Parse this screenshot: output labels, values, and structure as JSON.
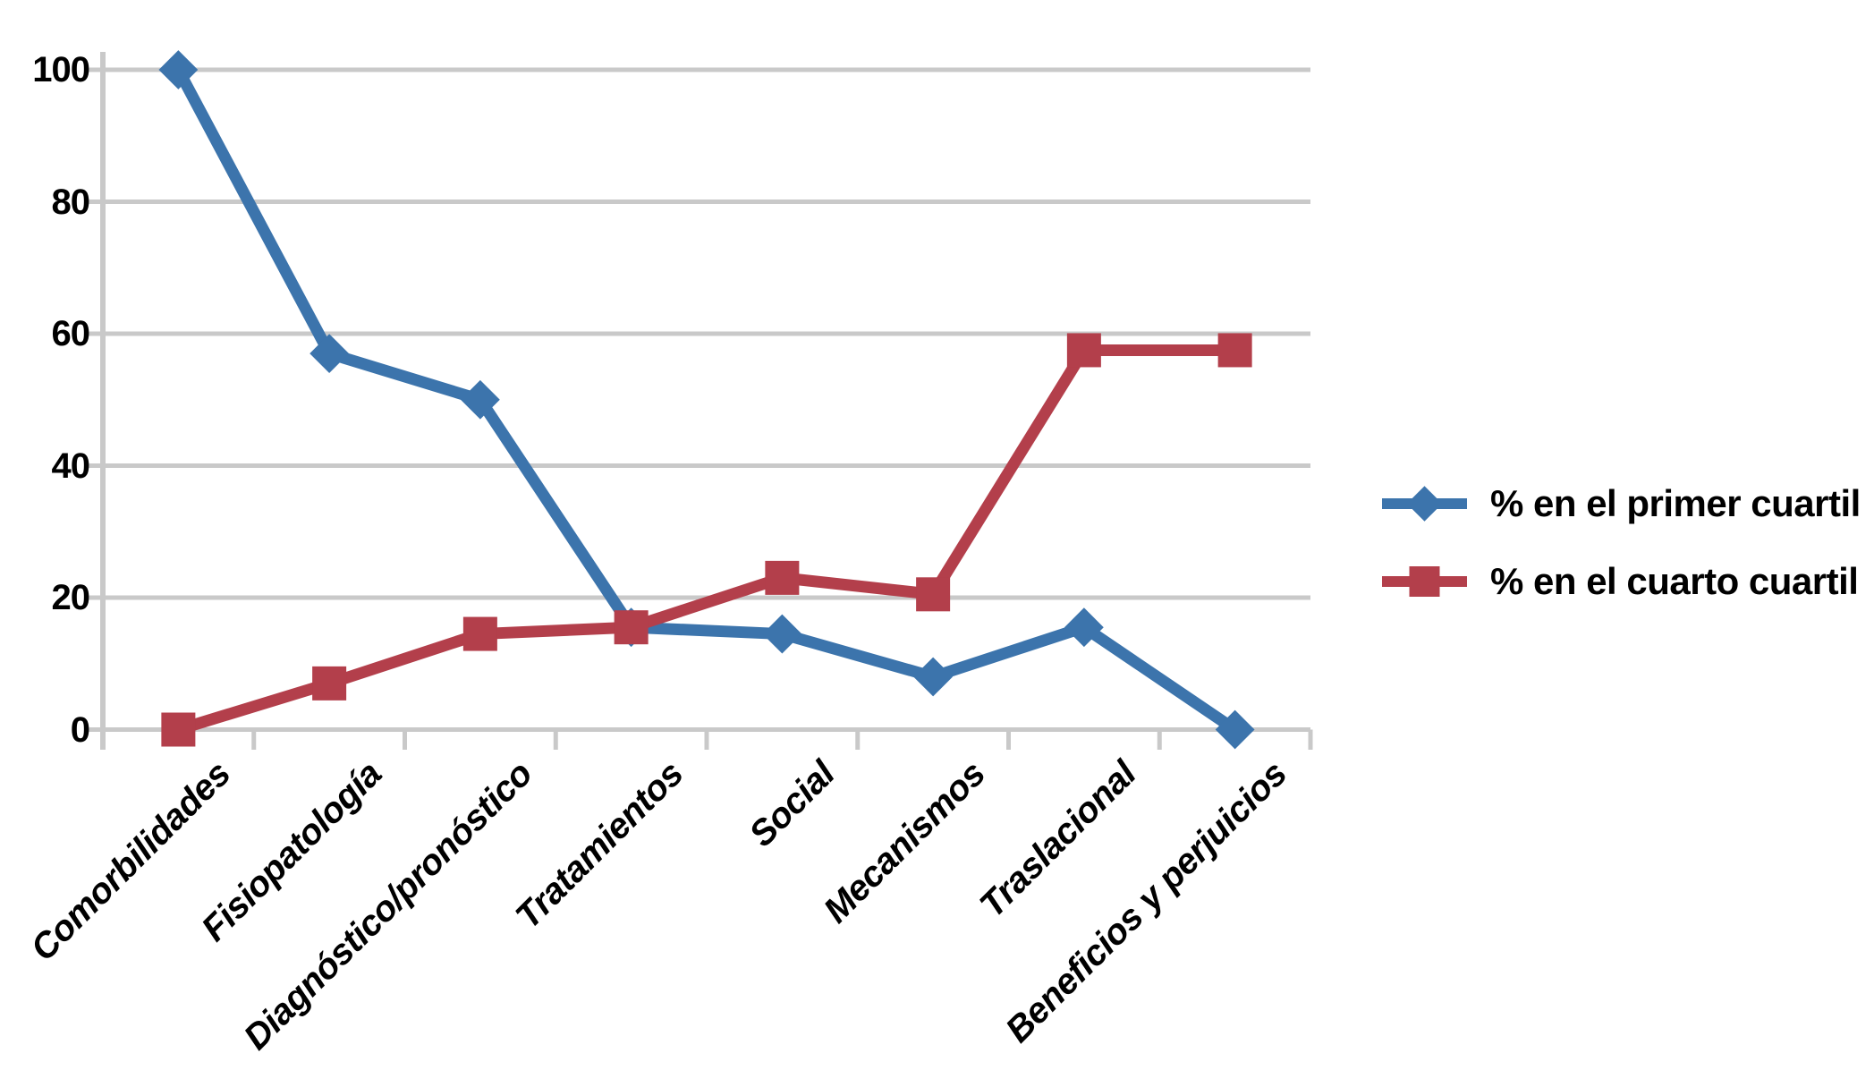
{
  "chart_data": {
    "type": "line",
    "title": "",
    "xlabel": "",
    "ylabel": "",
    "categories": [
      "Comorbilidades",
      "Fisiopatología",
      "Diagnóstico/pronóstico",
      "Tratamientos",
      "Social",
      "Mecanismos",
      "Traslacional",
      "Beneficios y perjuicios"
    ],
    "series": [
      {
        "name": "% en el primer cuartil",
        "marker": "diamond",
        "color": "#3C74AC",
        "values": [
          100,
          57,
          50,
          15.5,
          14.5,
          8,
          15.5,
          0
        ]
      },
      {
        "name": "% en el cuarto cuartil",
        "marker": "square",
        "color": "#B33F4B",
        "values": [
          0,
          7,
          14.5,
          15.5,
          23,
          20.5,
          57.5,
          57.5
        ]
      }
    ],
    "ylim": [
      0,
      100
    ],
    "yticks": [
      0,
      20,
      40,
      60,
      80,
      100
    ],
    "grid": true,
    "legend_position": "right"
  },
  "colors": {
    "background": "#FFFFFF",
    "grid": "#C9C9C9",
    "axis": "#C9C9C9",
    "label_text": "#000000"
  }
}
